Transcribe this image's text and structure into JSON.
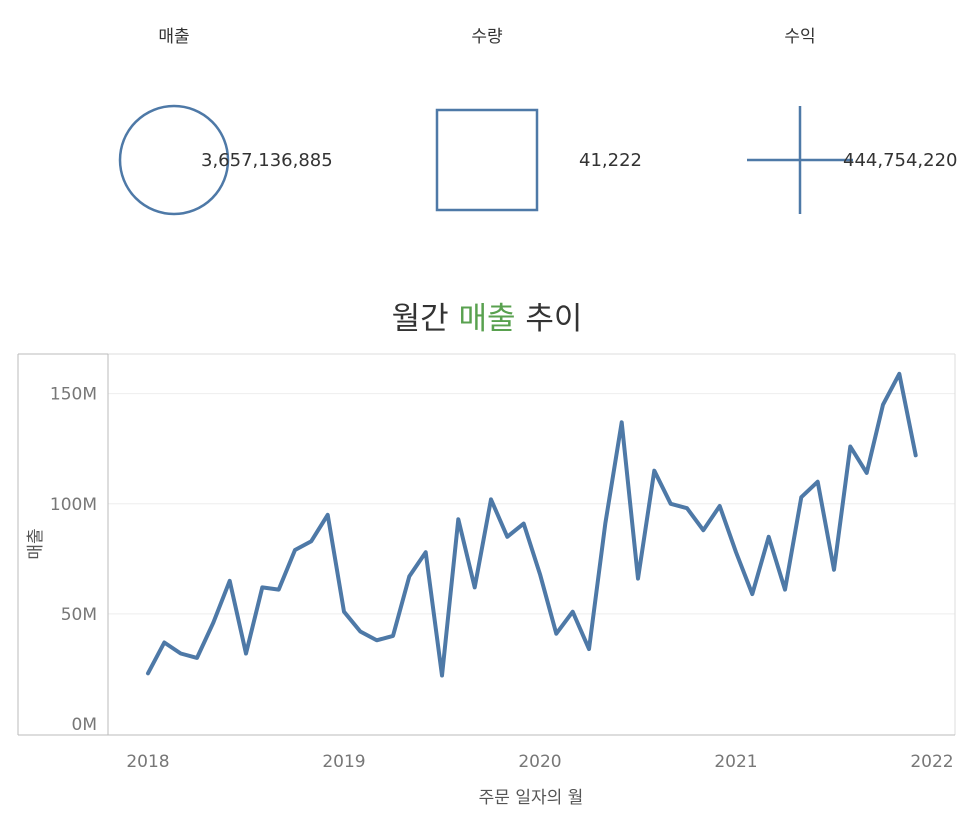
{
  "kpis": [
    {
      "title": "매출",
      "value": "3,657,136,885",
      "shape": "circle-icon"
    },
    {
      "title": "수량",
      "value": "41,222",
      "shape": "square-icon"
    },
    {
      "title": "수익",
      "value": "444,754,220",
      "shape": "plus-icon"
    }
  ],
  "colors": {
    "line": "#4e79a7",
    "accent": "#59a14f",
    "axis": "#bbbbbb",
    "grid": "#eeeeee"
  },
  "chart_data": {
    "type": "line",
    "title_parts": [
      "월간 ",
      "매출",
      " 추이"
    ],
    "xlabel": "주문 일자의 월",
    "ylabel": "매출",
    "x_ticks": [
      "2018",
      "2019",
      "2020",
      "2021",
      "2022"
    ],
    "y_ticks": [
      {
        "value": 0,
        "label": "0M"
      },
      {
        "value": 50,
        "label": "50M"
      },
      {
        "value": 100,
        "label": "100M"
      },
      {
        "value": 150,
        "label": "150M"
      }
    ],
    "ylim": [
      -5,
      168
    ],
    "xlim": [
      2017.95,
      2022.05
    ],
    "grid": true,
    "series": [
      {
        "x": [
          "2018-01",
          "2018-02",
          "2018-03",
          "2018-04",
          "2018-05",
          "2018-06",
          "2018-07",
          "2018-08",
          "2018-09",
          "2018-10",
          "2018-11",
          "2018-12",
          "2019-01",
          "2019-02",
          "2019-03",
          "2019-04",
          "2019-05",
          "2019-06",
          "2019-07",
          "2019-08",
          "2019-09",
          "2019-10",
          "2019-11",
          "2019-12",
          "2020-01",
          "2020-02",
          "2020-03",
          "2020-04",
          "2020-05",
          "2020-06",
          "2020-07",
          "2020-08",
          "2020-09",
          "2020-10",
          "2020-11",
          "2020-12",
          "2021-01",
          "2021-02",
          "2021-03",
          "2021-04",
          "2021-05",
          "2021-06",
          "2021-07",
          "2021-08",
          "2021-09",
          "2021-10",
          "2021-11",
          "2021-12"
        ],
        "values": [
          23,
          37,
          32,
          30,
          46,
          65,
          32,
          62,
          61,
          79,
          83,
          95,
          51,
          42,
          38,
          40,
          67,
          78,
          22,
          93,
          62,
          102,
          85,
          91,
          68,
          41,
          51,
          34,
          91,
          137,
          66,
          115,
          100,
          98,
          88,
          99,
          78,
          59,
          85,
          61,
          103,
          110,
          70,
          126,
          114,
          145,
          159,
          122
        ]
      }
    ]
  }
}
